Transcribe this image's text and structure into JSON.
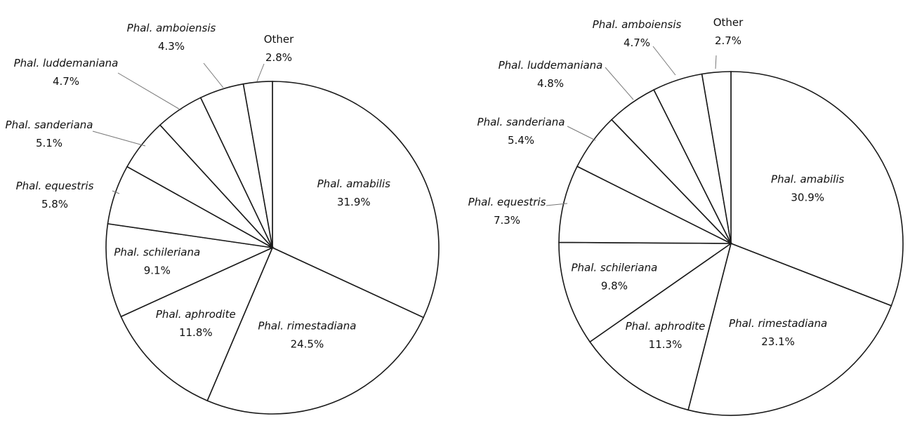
{
  "chart_data": [
    {
      "type": "pie",
      "start": "12 o'clock",
      "direction": "clockwise",
      "slices": [
        {
          "label": "Phal. amabilis",
          "value_label": "31.9%",
          "value": 31.9,
          "italic": true
        },
        {
          "label": "Phal. rimestadiana",
          "value_label": "24.5%",
          "value": 24.5,
          "italic": true
        },
        {
          "label": "Phal. aphrodite",
          "value_label": "11.8%",
          "value": 11.8,
          "italic": true
        },
        {
          "label": "Phal. schileriana",
          "value_label": "9.1%",
          "value": 9.1,
          "italic": true
        },
        {
          "label": "Phal. equestris",
          "value_label": "5.8%",
          "value": 5.8,
          "italic": true
        },
        {
          "label": "Phal. sanderiana",
          "value_label": "5.1%",
          "value": 5.1,
          "italic": true
        },
        {
          "label": "Phal. luddemaniana",
          "value_label": "4.7%",
          "value": 4.7,
          "italic": true
        },
        {
          "label": "Phal. amboiensis",
          "value_label": "4.3%",
          "value": 4.3,
          "italic": true
        },
        {
          "label": "Other",
          "value_label": "2.8%",
          "value": 2.8,
          "italic": false
        }
      ]
    },
    {
      "type": "pie",
      "start": "12 o'clock",
      "direction": "clockwise",
      "slices": [
        {
          "label": "Phal. amabilis",
          "value_label": "30.9%",
          "value": 30.9,
          "italic": true
        },
        {
          "label": "Phal. rimestadiana",
          "value_label": "23.1%",
          "value": 23.1,
          "italic": true
        },
        {
          "label": "Phal. aphrodite",
          "value_label": "11.3%",
          "value": 11.3,
          "italic": true
        },
        {
          "label": "Phal. schileriana",
          "value_label": "9.8%",
          "value": 9.8,
          "italic": true
        },
        {
          "label": "Phal. equestris",
          "value_label": "7.3%",
          "value": 7.3,
          "italic": true
        },
        {
          "label": "Phal. sanderiana",
          "value_label": "5.4%",
          "value": 5.4,
          "italic": true
        },
        {
          "label": "Phal. luddemaniana",
          "value_label": "4.8%",
          "value": 4.8,
          "italic": true
        },
        {
          "label": "Phal. amboiensis",
          "value_label": "4.7%",
          "value": 4.7,
          "italic": true
        },
        {
          "label": "Other",
          "value_label": "2.7%",
          "value": 2.7,
          "italic": false
        }
      ]
    }
  ]
}
